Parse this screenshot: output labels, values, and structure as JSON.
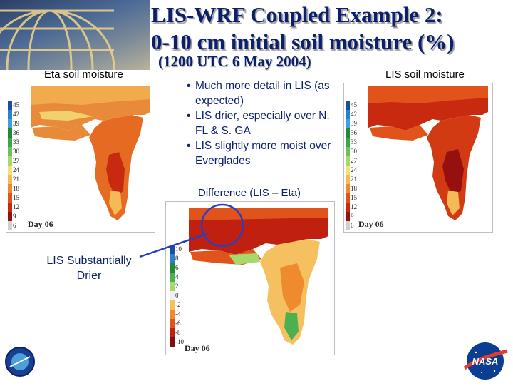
{
  "slide": {
    "title_line1": "LIS-WRF Coupled Example 2:",
    "title_line2": "0-10 cm initial soil moisture (%)",
    "subtitle": "(1200 UTC 6 May 2004)"
  },
  "left_panel": {
    "label": "Eta soil moisture",
    "legend_ticks": [
      "45",
      "42",
      "39",
      "36",
      "33",
      "30",
      "27",
      "24",
      "21",
      "18",
      "15",
      "12",
      "9",
      "6"
    ],
    "day_label": "Day 06"
  },
  "right_panel": {
    "label": "LIS soil moisture",
    "legend_ticks": [
      "45",
      "42",
      "39",
      "36",
      "33",
      "30",
      "27",
      "24",
      "21",
      "18",
      "15",
      "12",
      "9",
      "6"
    ],
    "day_label": "Day 06"
  },
  "bullets": [
    "Much more detail in LIS (as expected)",
    "LIS drier, especially over N. FL & S. GA",
    "LIS slightly more moist over Everglades"
  ],
  "difference_panel": {
    "label": "Difference (LIS – Eta)",
    "legend_ticks": [
      "10",
      "8",
      "6",
      "4",
      "2",
      "0",
      "-2",
      "-4",
      "-6",
      "-8",
      "-10"
    ],
    "day_label": "Day 06"
  },
  "callout": {
    "text_line1": "LIS Substantially",
    "text_line2": "Drier"
  },
  "colors": {
    "title": "#0b1f6e",
    "callout_line": "#2a3fbf",
    "moisture_scale": [
      "#1a4fa0",
      "#2b7fd0",
      "#3fa0e0",
      "#1f8a3a",
      "#3aa645",
      "#6ac25a",
      "#a6d96a",
      "#f3e27a",
      "#f5b955",
      "#f08a2e",
      "#e0541b",
      "#c82a10",
      "#961010",
      "#d0d0d0"
    ],
    "difference_scale": [
      "#1a4fa0",
      "#2b7fd0",
      "#1f8a3a",
      "#4cb050",
      "#a6d96a",
      "#f0f0f0",
      "#f5c060",
      "#f08a2e",
      "#e0541b",
      "#c02010",
      "#801010"
    ]
  },
  "icons": {
    "top_left": "globe-logo",
    "bottom_left": "mission-seal-icon",
    "bottom_right": "nasa-meatball-icon"
  }
}
